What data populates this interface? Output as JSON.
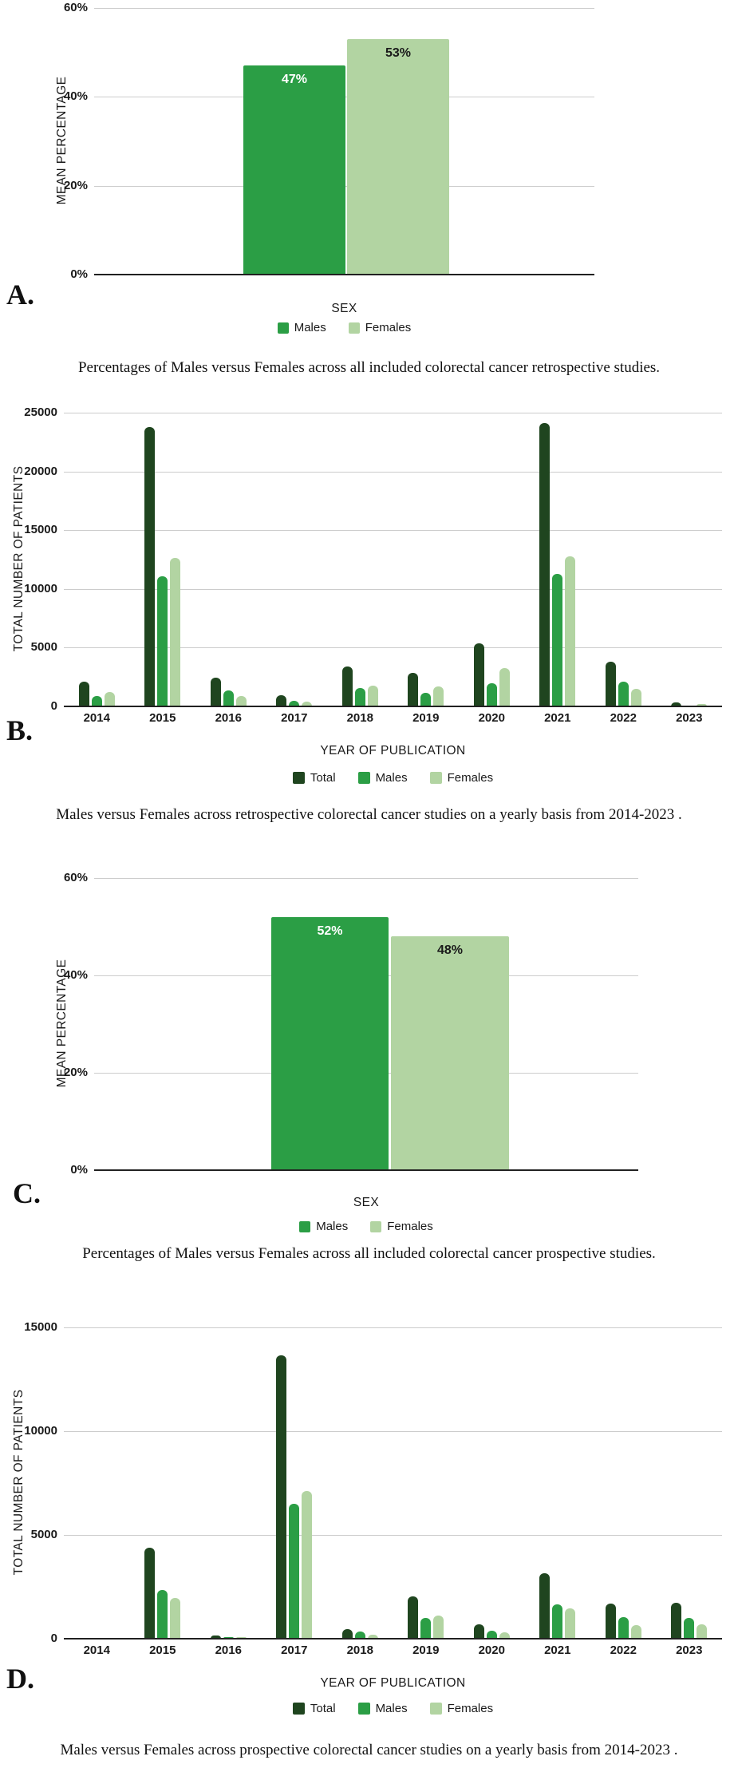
{
  "colors": {
    "total": "#1f451f",
    "males": "#2b9e45",
    "females": "#b2d4a2",
    "grid": "#cccccc",
    "axis": "#212121"
  },
  "chart_data": [
    {
      "id": "A",
      "panel_label": "A.",
      "type": "bar",
      "title": "",
      "ylabel": "MEAN PERCENTAGE",
      "xlabel": "SEX",
      "ylim": [
        0,
        60
      ],
      "grid": true,
      "y_ticks": [
        "60%",
        "40%",
        "20%",
        "0%"
      ],
      "legend_position": "bottom",
      "legend": [
        "Males",
        "Females"
      ],
      "bars": [
        {
          "label": "Males",
          "value": 47,
          "value_label": "47%",
          "color": "males",
          "value_label_color": "#ffffff"
        },
        {
          "label": "Females",
          "value": 53,
          "value_label": "53%",
          "color": "females",
          "value_label_color": "#1a1a1a"
        }
      ],
      "caption": "Percentages of Males versus Females across all included colorectal cancer retrospective studies."
    },
    {
      "id": "B",
      "panel_label": "B.",
      "type": "bar",
      "title": "",
      "ylabel": "TOTAL NUMBER OF PATIENTS",
      "xlabel": "YEAR OF PUBLICATION",
      "ylim": [
        0,
        25000
      ],
      "grid": true,
      "y_ticks": [
        "25000",
        "20000",
        "15000",
        "10000",
        "5000",
        "0"
      ],
      "legend_position": "bottom",
      "legend": [
        "Total",
        "Males",
        "Females"
      ],
      "categories": [
        "2014",
        "2015",
        "2016",
        "2017",
        "2018",
        "2019",
        "2020",
        "2021",
        "2022",
        "2023"
      ],
      "series": [
        {
          "name": "Total",
          "color": "total",
          "values": [
            2100,
            23800,
            2450,
            950,
            3400,
            2850,
            5400,
            24100,
            3800,
            320
          ]
        },
        {
          "name": "Males",
          "color": "males",
          "values": [
            900,
            11100,
            1370,
            480,
            1550,
            1150,
            2000,
            11250,
            2100,
            100
          ]
        },
        {
          "name": "Females",
          "color": "females",
          "values": [
            1200,
            12650,
            900,
            440,
            1800,
            1700,
            3250,
            12750,
            1500,
            230
          ]
        }
      ],
      "caption": "Males versus Females across retrospective colorectal cancer studies on a yearly basis from 2014-2023 ."
    },
    {
      "id": "C",
      "panel_label": "C.",
      "type": "bar",
      "title": "",
      "ylabel": "MEAN PERCENTAGE",
      "xlabel": "SEX",
      "ylim": [
        0,
        60
      ],
      "grid": true,
      "y_ticks": [
        "60%",
        "40%",
        "20%",
        "0%"
      ],
      "legend_position": "bottom",
      "legend": [
        "Males",
        "Females"
      ],
      "bars": [
        {
          "label": "Males",
          "value": 52,
          "value_label": "52%",
          "color": "males",
          "value_label_color": "#ffffff"
        },
        {
          "label": "Females",
          "value": 48,
          "value_label": "48%",
          "color": "females",
          "value_label_color": "#1a1a1a"
        }
      ],
      "caption": "Percentages of Males versus Females across all included colorectal cancer prospective studies."
    },
    {
      "id": "D",
      "panel_label": "D.",
      "type": "bar",
      "title": "",
      "ylabel": "TOTAL NUMBER OF PATIENTS",
      "xlabel": "YEAR OF PUBLICATION",
      "ylim": [
        0,
        15000
      ],
      "grid": true,
      "y_ticks": [
        "15000",
        "10000",
        "5000",
        "0"
      ],
      "legend_position": "bottom",
      "legend": [
        "Total",
        "Males",
        "Females"
      ],
      "categories": [
        "2014",
        "2015",
        "2016",
        "2017",
        "2018",
        "2019",
        "2020",
        "2021",
        "2022",
        "2023"
      ],
      "series": [
        {
          "name": "Total",
          "color": "total",
          "values": [
            0,
            4400,
            140,
            13650,
            480,
            2050,
            700,
            3150,
            1680,
            1750
          ]
        },
        {
          "name": "Males",
          "color": "males",
          "values": [
            0,
            2350,
            80,
            6500,
            330,
            1000,
            400,
            1650,
            1050,
            990
          ]
        },
        {
          "name": "Females",
          "color": "females",
          "values": [
            0,
            1950,
            60,
            7100,
            190,
            1100,
            290,
            1450,
            640,
            690
          ]
        }
      ],
      "caption": "Males versus Females across prospective colorectal cancer studies on a yearly basis from 2014-2023 ."
    }
  ]
}
